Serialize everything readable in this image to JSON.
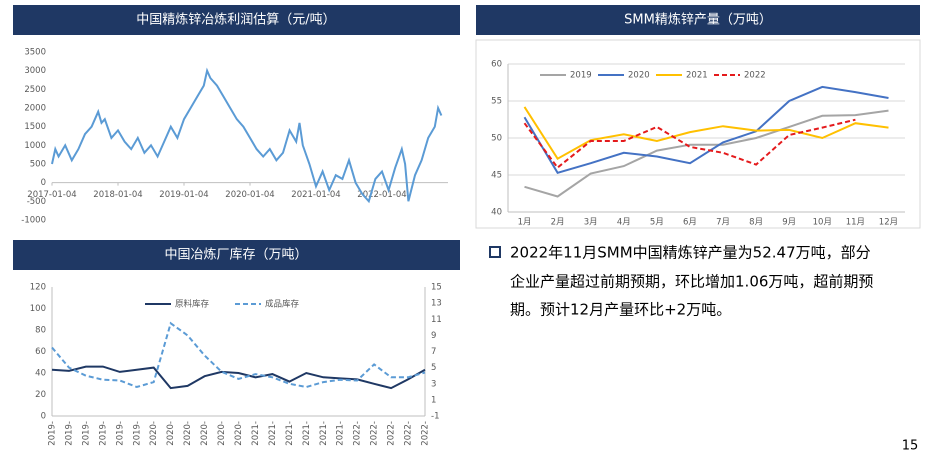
{
  "chart_data": [
    {
      "type": "line",
      "title": "中国精炼锌冶炼利润估算（元/吨）",
      "x": [
        2017.0,
        2017.05,
        2017.1,
        2017.2,
        2017.3,
        2017.4,
        2017.5,
        2017.6,
        2017.7,
        2017.75,
        2017.8,
        2017.9,
        2018.0,
        2018.1,
        2018.2,
        2018.3,
        2018.4,
        2018.5,
        2018.6,
        2018.7,
        2018.8,
        2018.9,
        2019.0,
        2019.1,
        2019.2,
        2019.3,
        2019.35,
        2019.4,
        2019.5,
        2019.6,
        2019.7,
        2019.8,
        2019.9,
        2020.0,
        2020.1,
        2020.2,
        2020.3,
        2020.4,
        2020.5,
        2020.6,
        2020.7,
        2020.75,
        2020.8,
        2020.9,
        2021.0,
        2021.1,
        2021.2,
        2021.3,
        2021.4,
        2021.5,
        2021.6,
        2021.7,
        2021.8,
        2021.9,
        2022.0,
        2022.1,
        2022.2,
        2022.3,
        2022.35,
        2022.4,
        2022.5,
        2022.6,
        2022.7,
        2022.8,
        2022.85,
        2022.9
      ],
      "values": [
        500,
        900,
        700,
        1000,
        600,
        900,
        1300,
        1500,
        1900,
        1600,
        1700,
        1200,
        1400,
        1100,
        900,
        1200,
        800,
        1000,
        700,
        1100,
        1500,
        1200,
        1700,
        2000,
        2300,
        2600,
        3000,
        2800,
        2600,
        2300,
        2000,
        1700,
        1500,
        1200,
        900,
        700,
        900,
        600,
        800,
        1400,
        1100,
        1600,
        1000,
        500,
        -100,
        300,
        -200,
        200,
        100,
        600,
        0,
        -300,
        -500,
        100,
        300,
        -200,
        400,
        900,
        500,
        -500,
        200,
        600,
        1200,
        1500,
        2000,
        1800
      ],
      "color": "#5b9bd5",
      "xlim": [
        2017,
        2023
      ],
      "xticks": [
        {
          "value": 2017,
          "label": "2017-01-04"
        },
        {
          "value": 2018,
          "label": "2018-01-04"
        },
        {
          "value": 2019,
          "label": "2019-01-04"
        },
        {
          "value": 2020,
          "label": "2020-01-04"
        },
        {
          "value": 2021,
          "label": "2021-01-04"
        },
        {
          "value": 2022,
          "label": "2022-01-04"
        }
      ],
      "ylim": [
        -1000,
        3500
      ],
      "yticks": [
        -1000,
        -500,
        0,
        500,
        1000,
        1500,
        2000,
        2500,
        3000,
        3500
      ]
    },
    {
      "type": "line",
      "title": "SMM精炼锌产量（万吨）",
      "categories": [
        "1月",
        "2月",
        "3月",
        "4月",
        "5月",
        "6月",
        "7月",
        "8月",
        "9月",
        "10月",
        "11月",
        "12月"
      ],
      "series": [
        {
          "name": "2019",
          "color": "#a5a5a5",
          "values": [
            43.4,
            42.1,
            45.2,
            46.2,
            48.3,
            49.1,
            49.1,
            50,
            51.5,
            53,
            53.1,
            53.7
          ]
        },
        {
          "name": "2020",
          "color": "#4472c4",
          "values": [
            52.8,
            45.3,
            46.6,
            48,
            47.5,
            46.6,
            49.4,
            50.9,
            55,
            56.9,
            56.2,
            55.4
          ]
        },
        {
          "name": "2021",
          "color": "#ffc000",
          "values": [
            54.2,
            47.2,
            49.7,
            50.5,
            49.6,
            50.8,
            51.6,
            51,
            51.1,
            50,
            52,
            51.4
          ]
        },
        {
          "name": "2022",
          "color": "#e41a1c",
          "dashed": true,
          "values": [
            52,
            46,
            49.6,
            49.6,
            51.5,
            48.8,
            48,
            46.4,
            50.4,
            51.4,
            52.47,
            null
          ]
        }
      ],
      "ylim": [
        40,
        60
      ],
      "yticks": [
        40,
        45,
        50,
        55,
        60
      ],
      "grid": true,
      "legend": "top"
    },
    {
      "type": "line",
      "title": "中国冶炼厂库存（万吨）",
      "categories": [
        "2019-",
        "2019-",
        "2019-",
        "2019-",
        "2019-",
        "2019-",
        "2020-",
        "2020-",
        "2020-",
        "2020-",
        "2020-",
        "2020-",
        "2021-",
        "2021-",
        "2021-",
        "2021-",
        "2021-",
        "2021-",
        "2022-",
        "2022-",
        "2022-",
        "2022-",
        "2022-"
      ],
      "series": [
        {
          "name": "原料库存",
          "color": "#1f3864",
          "values": [
            43,
            42,
            46,
            46,
            41,
            43,
            45,
            26,
            28,
            37,
            41,
            40,
            36,
            39,
            32,
            40,
            36,
            35,
            34,
            30,
            26,
            34,
            43
          ]
        },
        {
          "name": "成品库存",
          "color": "#5b9bd5",
          "dashed": true,
          "axis": "y2",
          "values": [
            7.5,
            5,
            4,
            3.5,
            3.4,
            2.6,
            3.2,
            10.5,
            9,
            6.5,
            4.5,
            3.6,
            4.2,
            3.8,
            3,
            2.6,
            3.2,
            3.5,
            3.4,
            5.4,
            3.8,
            3.8,
            4.4
          ]
        }
      ],
      "ylim": [
        0,
        120
      ],
      "yticks": [
        0,
        20,
        40,
        60,
        80,
        100,
        120
      ],
      "y2lim": [
        -1,
        15
      ],
      "y2ticks": [
        -1,
        1,
        3,
        5,
        7,
        9,
        11,
        13,
        15
      ],
      "legend": "top"
    }
  ],
  "note": {
    "lines": [
      "2022年11月SMM中国精炼锌产量为52.47万吨，部分",
      "企业产量超过前期预期，环比增加1.06万吨，超前期预",
      "期。预计12月产量环比+2万吨。"
    ]
  },
  "page_number": "15"
}
